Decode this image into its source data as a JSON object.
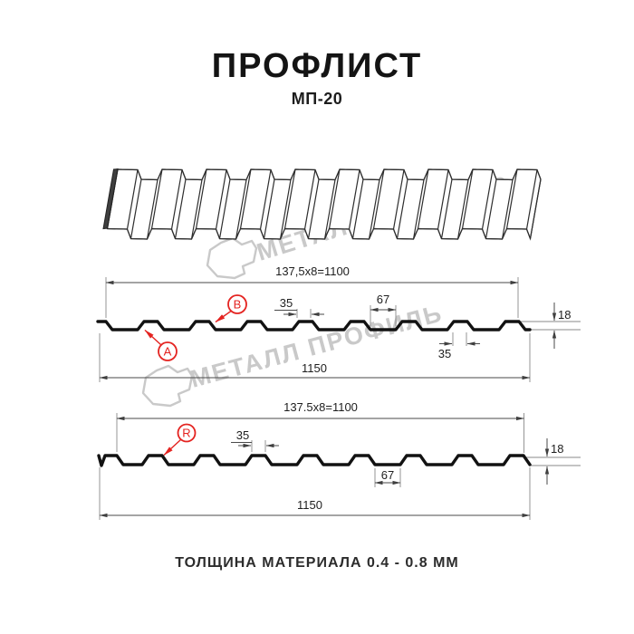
{
  "header": {
    "title": "ПРОФЛИСТ",
    "subtitle": "МП-20"
  },
  "watermark": {
    "text": "МЕТАЛЛ ПРОФИЛЬ"
  },
  "profile1": {
    "width_formula": "137,5x8=1100",
    "rib_top_width": "35",
    "flange_width": "67",
    "height": "18",
    "rib_bottom_width": "35",
    "total_width": "1150",
    "label_a": "A",
    "label_b": "B"
  },
  "profile2": {
    "width_formula": "137.5x8=1100",
    "rib_top_width": "35",
    "height": "18",
    "flange_width": "67",
    "total_width": "1150",
    "label_r": "R"
  },
  "footer": {
    "text": "ТОЛЩИНА МАТЕРИАЛА 0.4 - 0.8 ММ"
  },
  "colors": {
    "accent_red": "#e42320",
    "line": "#2e2e2e",
    "watermark": "#c9c9c9"
  }
}
